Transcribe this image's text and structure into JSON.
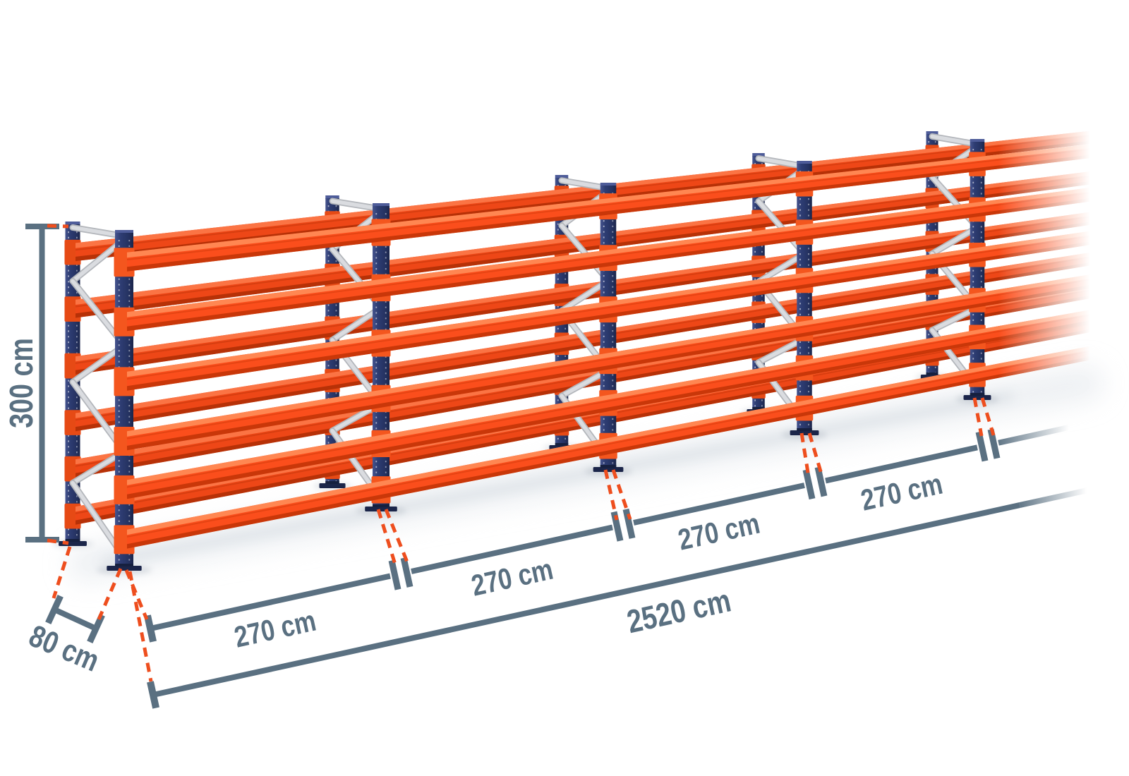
{
  "diagram_title": "pallet-racking-row-dimension-diagram",
  "dimensions": {
    "height": {
      "label": "300 cm",
      "value_cm": 300
    },
    "depth": {
      "label": "80 cm",
      "value_cm": 80
    },
    "bays": [
      {
        "label": "270 cm",
        "value_cm": 270
      },
      {
        "label": "270 cm",
        "value_cm": 270
      },
      {
        "label": "270 cm",
        "value_cm": 270
      },
      {
        "label": "270 cm",
        "value_cm": 270
      }
    ],
    "total": {
      "label": "2520 cm",
      "value_cm": 2520
    }
  },
  "structure": {
    "visible_upright_frames": 5,
    "beam_levels": 6,
    "labeled_bays": 4
  },
  "colors": {
    "beam_orange": "#fb4e1c",
    "beam_orange_light": "#ff8a55",
    "beam_orange_groove": "#d63c0c",
    "beam_orange_dark": "#c33508",
    "back_beam_orange": "#ee4717",
    "back_beam_light": "#fb7747",
    "back_beam_groove": "#c5370b",
    "back_beam_dark": "#b02f06",
    "post_navy": "#2e3d73",
    "post_navy_dark": "#1b2549",
    "post_navy_light": "#46548e",
    "post_cap": "#4e5c99",
    "connector_orange": "#f4561e",
    "brace_silver": "#dadce0",
    "brace_silver_edge": "#b3b6bb",
    "dimension_slate": "#5a7081",
    "guide_red": "#ee4e1e",
    "floor_shadow": "#c8d0d8",
    "floor_band": "#dce1e7",
    "background": "#ffffff"
  }
}
